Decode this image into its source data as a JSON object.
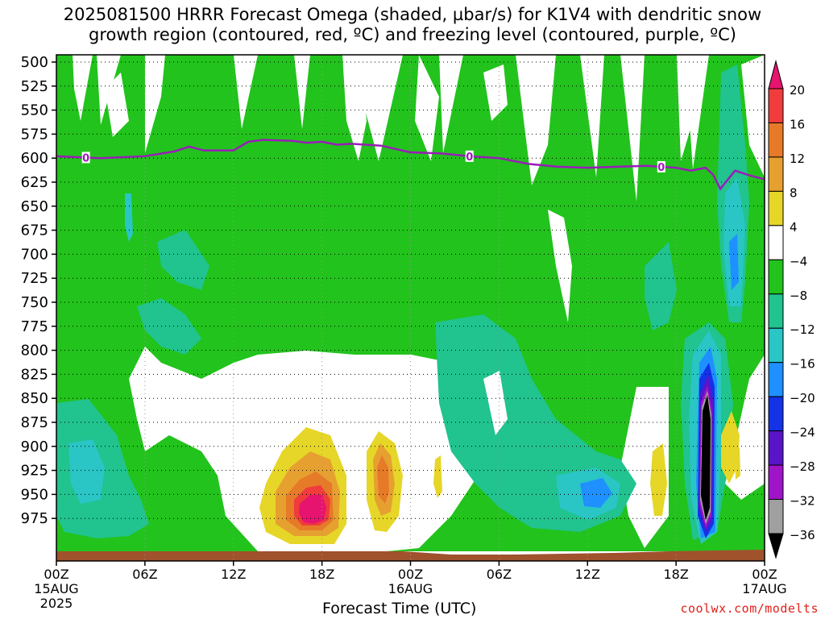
{
  "title_line1": "2025081500 HRRR Forecast Omega (shaded, µbar/s) for K1V4 with dendritic snow",
  "title_line2": "growth region (contoured, red, ºC) and freezing level (contoured, purple, ºC)",
  "credit": "coolwx.com/modelts",
  "colors": {
    "green": "#22c31c",
    "teal": "#21c38f",
    "cyan": "#2ac5c5",
    "blue": "#1e90ff",
    "yellow": "#e6d628",
    "orange1": "#e6a030",
    "orange2": "#e67a28",
    "red": "#f03c3c",
    "magenta": "#e6146e",
    "purple": "#8c14c8",
    "freezing_line": "#9a1cb8",
    "ground": "#a0522d"
  },
  "chart_data": {
    "type": "heatmap",
    "xlabel": "Forecast Time (UTC)",
    "ylabel": "",
    "x_ticks": [
      "00Z",
      "06Z",
      "12Z",
      "18Z",
      "00Z",
      "06Z",
      "12Z",
      "18Z",
      "00Z"
    ],
    "x_date_labels": [
      {
        "tick": 0,
        "text": "15AUG"
      },
      {
        "tick": 0,
        "text": "2025",
        "row": 2
      },
      {
        "tick": 4,
        "text": "16AUG"
      },
      {
        "tick": 8,
        "text": "17AUG"
      }
    ],
    "y_ticks": [
      500,
      525,
      550,
      575,
      600,
      625,
      650,
      675,
      700,
      725,
      750,
      775,
      800,
      825,
      850,
      875,
      900,
      925,
      950,
      975
    ],
    "y_range": [
      500,
      990
    ],
    "x_range_hours": [
      0,
      48
    ],
    "grid": true,
    "colorbar": {
      "labels": [
        "20",
        "16",
        "12",
        "8",
        "4",
        "−4",
        "−8",
        "−12",
        "−16",
        "−20",
        "−24",
        "−28",
        "−32",
        "−36"
      ],
      "bins": [
        {
          "color": "#e6146e"
        },
        {
          "color": "#f03c3c"
        },
        {
          "color": "#e67a28"
        },
        {
          "color": "#e6a030"
        },
        {
          "color": "#e6d628"
        },
        {
          "color": "#ffffff"
        },
        {
          "color": "#22c31c"
        },
        {
          "color": "#21c38f"
        },
        {
          "color": "#2ac5c5"
        },
        {
          "color": "#1e90ff"
        },
        {
          "color": "#1432e6"
        },
        {
          "color": "#5a14c8"
        },
        {
          "color": "#a014c8"
        },
        {
          "color": "#a0a0a0"
        },
        {
          "color": "#000000"
        }
      ]
    },
    "freezing_level": {
      "label": "0",
      "hours": [
        0,
        3,
        6,
        8,
        9,
        10,
        12,
        13,
        14,
        16,
        17,
        18,
        19,
        20,
        22,
        24,
        26,
        28,
        30,
        32,
        34,
        36,
        38,
        40,
        42,
        43,
        44,
        44.5,
        45,
        46,
        47,
        48
      ],
      "pressure": [
        598,
        600,
        598,
        593,
        588,
        592,
        592,
        583,
        581,
        582,
        584,
        583,
        586,
        585,
        587,
        594,
        595,
        598,
        600,
        606,
        609,
        610,
        609,
        608,
        610,
        613,
        610,
        617,
        632,
        613,
        618,
        622
      ]
    },
    "features": [
      {
        "name": "positive omega max",
        "hour": 17.5,
        "pressure": 930,
        "value": 20
      },
      {
        "name": "negative omega min",
        "hour": 43.5,
        "pressure": 870,
        "value": -36
      }
    ]
  }
}
